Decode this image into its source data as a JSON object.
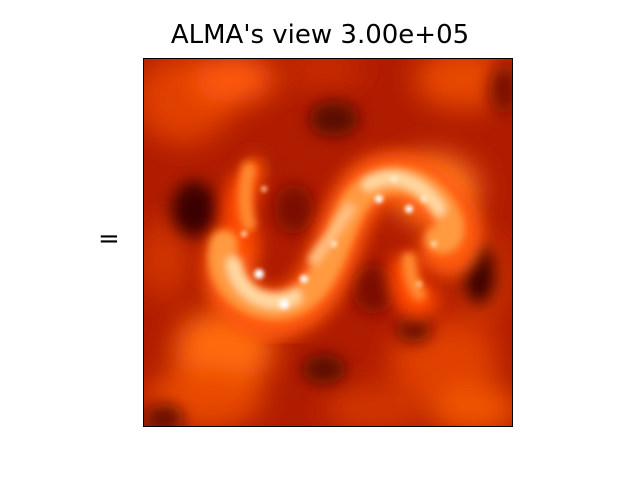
{
  "figure": {
    "title": "ALMA's view 3.00e+05",
    "equals_sign": "=",
    "colormap": "gist_heat",
    "colors": {
      "dark": "#4a0500",
      "mid": "#b52200",
      "bright": "#ff6a10",
      "highlight": "#ffe8c8",
      "white": "#ffffff"
    }
  }
}
